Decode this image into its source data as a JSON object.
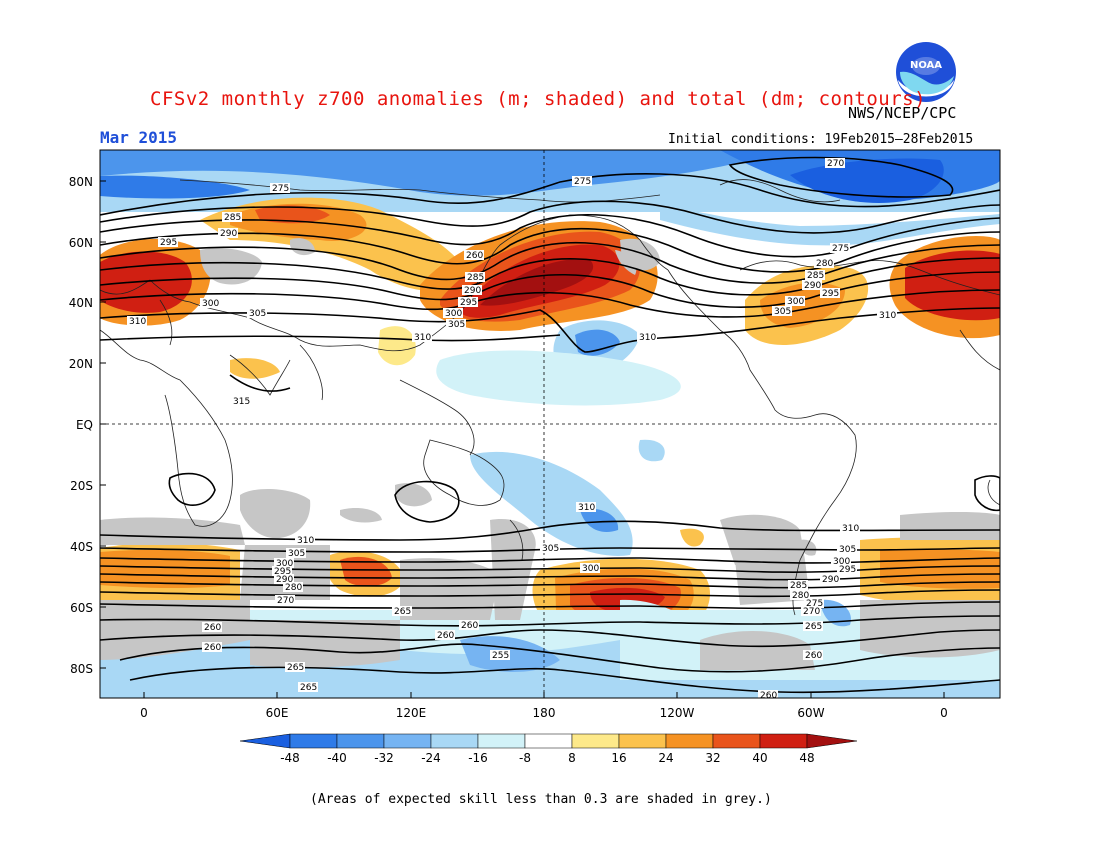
{
  "header": {
    "title": "CFSv2 monthly z700 anomalies (m; shaded) and total (dm; contours)",
    "agency": "NWS/NCEP/CPC",
    "month": "Mar 2015",
    "initial_conditions": "Initial conditions: 19Feb2015–28Feb2015",
    "logo_text": "NOAA"
  },
  "map": {
    "lat_labels": [
      "80N",
      "60N",
      "40N",
      "20N",
      "EQ",
      "20S",
      "40S",
      "60S",
      "80S"
    ],
    "lon_labels": [
      "0",
      "60E",
      "120E",
      "180",
      "120W",
      "60W",
      "0"
    ],
    "contour_labels": [
      "270",
      "275",
      "280",
      "285",
      "290",
      "295",
      "300",
      "305",
      "310",
      "315",
      "255",
      "260",
      "265"
    ]
  },
  "colorbar": {
    "labels": [
      "-48",
      "-40",
      "-32",
      "-24",
      "-16",
      "-8",
      "8",
      "16",
      "24",
      "32",
      "40",
      "48"
    ],
    "colors": [
      "#1a5fe0",
      "#2f7be8",
      "#4c95ec",
      "#76b4f2",
      "#a9d8f5",
      "#d2f2f8",
      "#ffffff",
      "#fde98a",
      "#fbc24d",
      "#f59223",
      "#e9541b",
      "#d01f12",
      "#a31010"
    ]
  },
  "footnote": "(Areas of expected skill less than 0.3 are shaded in grey.)"
}
